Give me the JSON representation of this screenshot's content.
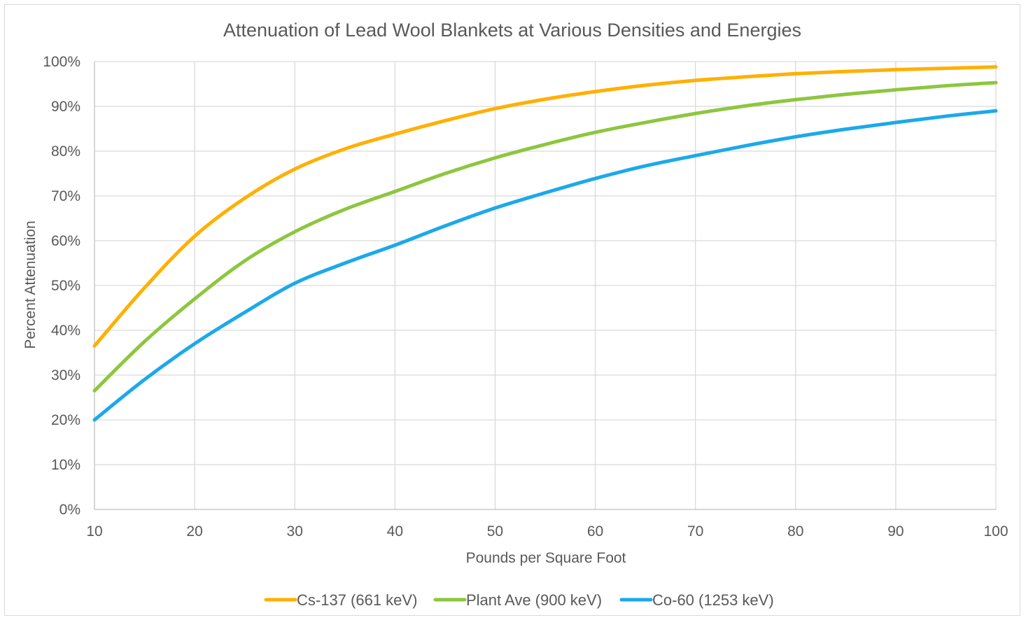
{
  "chart_data": {
    "type": "line",
    "title": "Attenuation of Lead Wool Blankets at Various Densities and Energies",
    "xlabel": "Pounds per Square Foot",
    "ylabel": "Percent Attenuation",
    "xlim": [
      10,
      100
    ],
    "ylim": [
      0,
      100
    ],
    "x_ticks": [
      "10",
      "20",
      "30",
      "40",
      "50",
      "60",
      "70",
      "80",
      "90",
      "100"
    ],
    "y_ticks": [
      "0%",
      "10%",
      "20%",
      "30%",
      "40%",
      "50%",
      "60%",
      "70%",
      "80%",
      "90%",
      "100%"
    ],
    "grid": true,
    "legend_position": "bottom",
    "x": [
      10,
      15,
      20,
      25,
      30,
      35,
      40,
      45,
      50,
      55,
      60,
      65,
      70,
      75,
      80,
      85,
      90,
      95,
      100
    ],
    "series": [
      {
        "name": "Cs-137 (661 keV)",
        "color": "#FFB000",
        "values": [
          36.5,
          49.5,
          61,
          69.5,
          76,
          80.5,
          83.8,
          86.8,
          89.5,
          91.6,
          93.3,
          94.7,
          95.8,
          96.6,
          97.3,
          97.8,
          98.2,
          98.5,
          98.8
        ]
      },
      {
        "name": "Plant Ave (900 keV)",
        "color": "#8DC63F",
        "values": [
          26.5,
          37.5,
          47,
          55.5,
          62,
          67,
          71,
          75,
          78.5,
          81.5,
          84.2,
          86.4,
          88.4,
          90.1,
          91.5,
          92.7,
          93.7,
          94.6,
          95.3
        ]
      },
      {
        "name": "Co-60 (1253 keV)",
        "color": "#1CA9E9",
        "values": [
          20,
          29,
          37,
          44,
          50.5,
          55,
          59,
          63.3,
          67.3,
          70.7,
          73.9,
          76.7,
          79,
          81.2,
          83.2,
          84.9,
          86.4,
          87.8,
          89
        ]
      }
    ]
  }
}
